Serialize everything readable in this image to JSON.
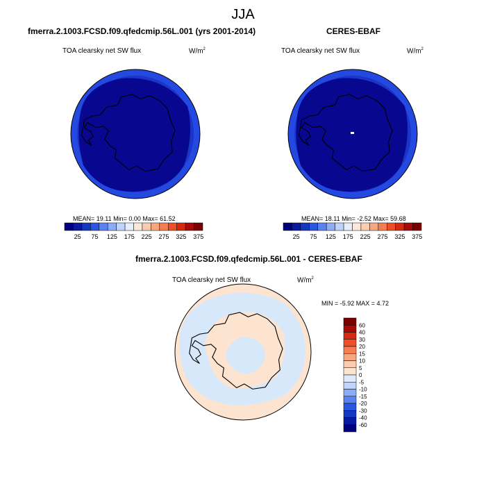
{
  "title": "JJA",
  "panels": {
    "model": {
      "case_title": "fmerra.2.1003.FCSD.f09.qfedcmip.56L.001 (yrs 2001-2014)",
      "variable": "TOA clearsky net SW flux",
      "units_base": "W/m",
      "units_exp": "2",
      "stats": "MEAN=  19.11  Min=   0.00  Max=  61.52"
    },
    "obs": {
      "case_title": "CERES-EBAF",
      "variable": "TOA clearsky net SW flux",
      "units_base": "W/m",
      "units_exp": "2",
      "stats": "MEAN=  18.11  Min=  -2.52  Max=  59.68"
    },
    "diff": {
      "case_title": "fmerra.2.1003.FCSD.f09.qfedcmip.56L.001 - CERES-EBAF",
      "variable": "TOA clearsky net SW flux",
      "units_base": "W/m",
      "units_exp": "2",
      "stats": "MIN =  -5.92 MAX =   4.72"
    }
  },
  "colorbar_top": {
    "colors": [
      "#00007f",
      "#0a1aa0",
      "#1438c0",
      "#2a56e0",
      "#5a82f0",
      "#8cacf8",
      "#bed4fc",
      "#e6eefc",
      "#fde8dc",
      "#fcccb0",
      "#f8a880",
      "#f47e52",
      "#ec5028",
      "#d42a10",
      "#a80a08",
      "#7a0000"
    ],
    "labels": [
      "25",
      "75",
      "125",
      "175",
      "225",
      "275",
      "325",
      "375"
    ]
  },
  "colorbar_diff": {
    "colors": [
      "#00007f",
      "#0a1aa0",
      "#1438c0",
      "#2a56e0",
      "#5a82f0",
      "#8cacf8",
      "#bed4fc",
      "#deeafa",
      "#fde4d0",
      "#fcccb0",
      "#f8a880",
      "#f47e52",
      "#ec5028",
      "#d42a10",
      "#a80a08",
      "#7a0000"
    ],
    "labels": [
      "60",
      "40",
      "30",
      "20",
      "15",
      "10",
      "5",
      "0",
      "-5",
      "-10",
      "-15",
      "-20",
      "-30",
      "-40",
      "-60"
    ]
  }
}
